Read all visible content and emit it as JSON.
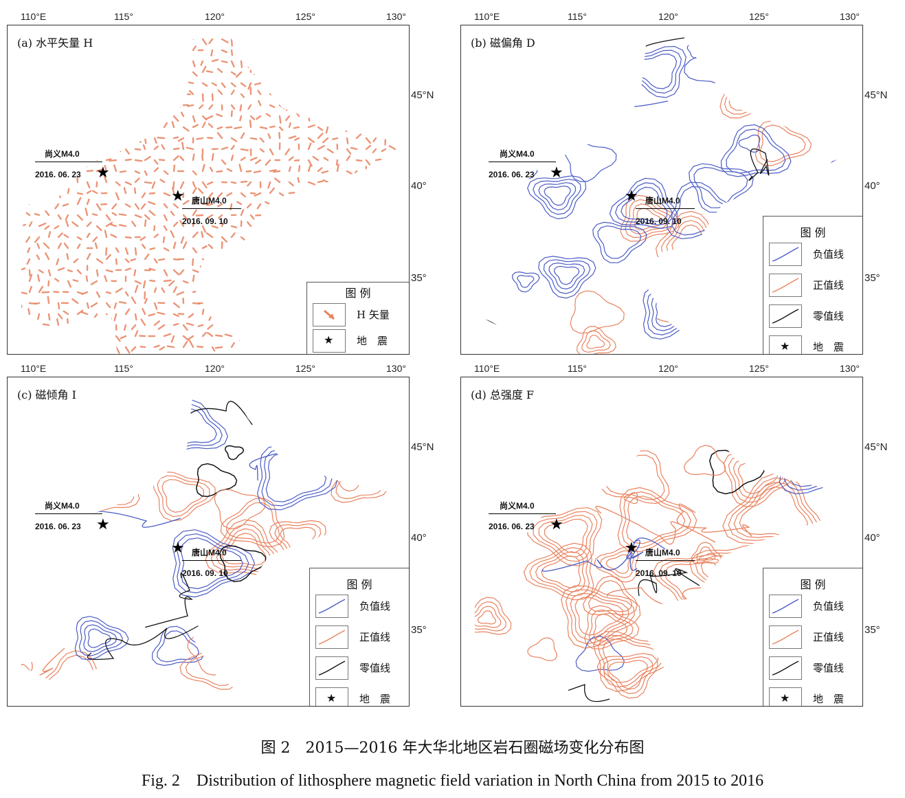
{
  "axes": {
    "lon_labels": [
      "110°E",
      "115°",
      "120°",
      "125°",
      "130°"
    ],
    "lat_labels": [
      "45°N",
      "40°",
      "35°"
    ]
  },
  "panels": [
    {
      "id": "a",
      "title": "(a) 水平矢量 H",
      "legend": {
        "title": "图 例",
        "items": [
          {
            "icon": "vector-arrow-icon",
            "label": "H 矢量"
          },
          {
            "icon": "star-icon",
            "label": "地　震"
          }
        ]
      }
    },
    {
      "id": "b",
      "title": "(b) 磁偏角 D",
      "legend": {
        "title": "图 例",
        "items": [
          {
            "icon": "negative-line-icon",
            "label": "负值线"
          },
          {
            "icon": "positive-line-icon",
            "label": "正值线"
          },
          {
            "icon": "zero-line-icon",
            "label": "零值线"
          },
          {
            "icon": "star-icon",
            "label": "地　震"
          }
        ]
      }
    },
    {
      "id": "c",
      "title": "(c) 磁倾角 I",
      "legend": {
        "title": "图 例",
        "items": [
          {
            "icon": "negative-line-icon",
            "label": "负值线"
          },
          {
            "icon": "positive-line-icon",
            "label": "正值线"
          },
          {
            "icon": "zero-line-icon",
            "label": "零值线"
          },
          {
            "icon": "star-icon",
            "label": "地　震"
          }
        ]
      }
    },
    {
      "id": "d",
      "title": "(d) 总强度 F",
      "legend": {
        "title": "图 例",
        "items": [
          {
            "icon": "negative-line-icon",
            "label": "负值线"
          },
          {
            "icon": "positive-line-icon",
            "label": "正值线"
          },
          {
            "icon": "zero-line-icon",
            "label": "零值线"
          },
          {
            "icon": "star-icon",
            "label": "地　震"
          }
        ]
      }
    }
  ],
  "earthquakes": [
    {
      "name": "尚义M4.0",
      "date": "2016. 06. 23"
    },
    {
      "name": "唐山M4.0",
      "date": "2016. 09. 10"
    }
  ],
  "colors": {
    "negative": "#4a5bc4",
    "positive": "#e8825e",
    "zero": "#111111"
  },
  "caption": {
    "zh": "图 2　2015—2016 年大华北地区岩石圈磁场变化分布图",
    "en": "Fig. 2　Distribution of lithosphere magnetic field variation in North China from 2015 to 2016"
  }
}
